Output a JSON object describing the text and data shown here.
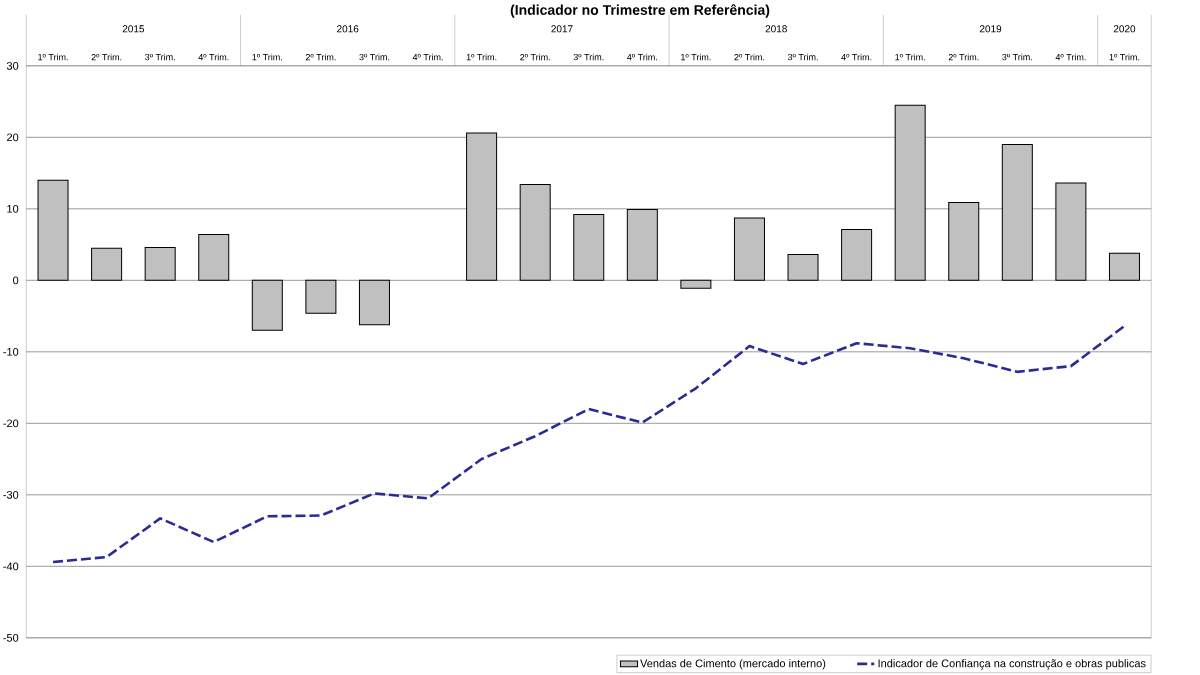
{
  "chart_data": {
    "type": "bar",
    "title": "(Indicador no Trimestre em Referência)",
    "categories": [
      "1º Trim.",
      "2º Trim.",
      "3º Trim.",
      "4º Trim.",
      "1º Trim.",
      "2º Trim.",
      "3º Trim.",
      "4º Trim.",
      "1º Trim.",
      "2º Trim.",
      "3º Trim.",
      "4º Trim.",
      "1º Trim.",
      "2º Trim.",
      "3º Trim.",
      "4º Trim.",
      "1º Trim.",
      "2º Trim.",
      "3º Trim.",
      "4º Trim.",
      "1º Trim."
    ],
    "annotations": [
      "2015",
      "2016",
      "2017",
      "2018",
      "2019",
      "2020"
    ],
    "series": [
      {
        "name": "Vendas de Cimento (mercado interno)",
        "type": "bar",
        "color": "#c0c0c0",
        "values": [
          14.0,
          4.5,
          4.6,
          6.4,
          -7.0,
          -4.6,
          -6.2,
          null,
          20.6,
          13.4,
          9.2,
          9.9,
          -1.1,
          8.7,
          3.6,
          7.1,
          24.5,
          10.9,
          19.0,
          13.6,
          3.8
        ]
      },
      {
        "name": "Indicador de Confiança na construção e obras publicas",
        "type": "line",
        "color": "#2b2b94",
        "line_style": "dashed",
        "values": [
          -39.4,
          -38.7,
          -33.3,
          -36.6,
          -33.0,
          -32.9,
          -29.8,
          -30.5,
          -25.0,
          -21.8,
          -18.0,
          -19.9,
          -15.1,
          -9.2,
          -11.7,
          -8.8,
          -9.5,
          -10.9,
          -12.8,
          -12.0,
          -6.4
        ]
      }
    ],
    "ylim": [
      -50,
      30
    ],
    "yticks": [
      -50,
      -40,
      -30,
      -20,
      -10,
      0,
      10,
      20,
      30
    ],
    "grid": "y",
    "legend": "bottom"
  }
}
